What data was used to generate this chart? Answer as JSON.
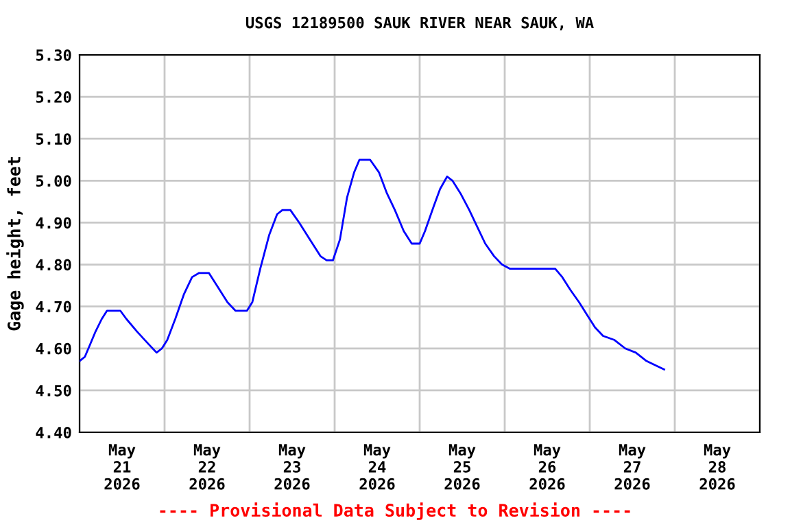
{
  "chart_data": {
    "type": "line",
    "title": "USGS 12189500 SAUK RIVER NEAR SAUK, WA",
    "ylabel": "Gage height, feet",
    "annotations": [
      "---- Provisional Data Subject to Revision ----"
    ],
    "x": [
      "2026-05-21T00:00",
      "2026-05-21T01:30",
      "2026-05-21T03:00",
      "2026-05-21T04:30",
      "2026-05-21T06:15",
      "2026-05-21T07:45",
      "2026-05-21T11:30",
      "2026-05-21T13:15",
      "2026-05-21T16:15",
      "2026-05-21T19:30",
      "2026-05-21T21:45",
      "2026-05-21T23:15",
      "2026-05-22T00:45",
      "2026-05-22T03:00",
      "2026-05-22T05:30",
      "2026-05-22T07:45",
      "2026-05-22T09:45",
      "2026-05-22T12:30",
      "2026-05-22T14:45",
      "2026-05-22T17:45",
      "2026-05-22T20:00",
      "2026-05-22T23:15",
      "2026-05-23T00:45",
      "2026-05-23T03:00",
      "2026-05-23T05:30",
      "2026-05-23T07:45",
      "2026-05-23T09:15",
      "2026-05-23T11:30",
      "2026-05-23T14:00",
      "2026-05-23T17:00",
      "2026-05-23T20:00",
      "2026-05-23T21:45",
      "2026-05-23T23:30",
      "2026-05-24T01:30",
      "2026-05-24T03:30",
      "2026-05-24T05:30",
      "2026-05-24T07:00",
      "2026-05-24T10:00",
      "2026-05-24T12:30",
      "2026-05-24T14:45",
      "2026-05-24T17:00",
      "2026-05-24T19:30",
      "2026-05-24T21:45",
      "2026-05-25T00:00",
      "2026-05-25T01:30",
      "2026-05-25T04:00",
      "2026-05-25T05:45",
      "2026-05-25T07:45",
      "2026-05-25T09:15",
      "2026-05-25T11:30",
      "2026-05-25T14:00",
      "2026-05-25T16:15",
      "2026-05-25T18:30",
      "2026-05-25T21:00",
      "2026-05-25T23:15",
      "2026-05-26T01:30",
      "2026-05-26T14:15",
      "2026-05-26T16:15",
      "2026-05-26T18:30",
      "2026-05-26T21:00",
      "2026-05-26T23:15",
      "2026-05-27T01:30",
      "2026-05-27T03:45",
      "2026-05-27T07:00",
      "2026-05-27T10:00",
      "2026-05-27T13:00",
      "2026-05-27T16:00",
      "2026-05-27T18:30",
      "2026-05-27T21:00"
    ],
    "series": [
      {
        "color": "#0000ff",
        "values": [
          4.57,
          4.58,
          4.61,
          4.64,
          4.67,
          4.69,
          4.69,
          4.67,
          4.64,
          4.61,
          4.59,
          4.6,
          4.62,
          4.67,
          4.73,
          4.77,
          4.78,
          4.78,
          4.75,
          4.71,
          4.69,
          4.69,
          4.71,
          4.79,
          4.87,
          4.92,
          4.93,
          4.93,
          4.9,
          4.86,
          4.82,
          4.81,
          4.81,
          4.86,
          4.96,
          5.02,
          5.05,
          5.05,
          5.02,
          4.97,
          4.93,
          4.88,
          4.85,
          4.85,
          4.88,
          4.94,
          4.98,
          5.01,
          5.0,
          4.97,
          4.93,
          4.89,
          4.85,
          4.82,
          4.8,
          4.79,
          4.79,
          4.77,
          4.74,
          4.71,
          4.68,
          4.65,
          4.63,
          4.62,
          4.6,
          4.59,
          4.57,
          4.56,
          4.55
        ]
      }
    ],
    "xlim": [
      "2026-05-21T00:00",
      "2026-05-29T00:00"
    ],
    "xticks": [
      {
        "value": "2026-05-21T00:00",
        "label": null
      },
      {
        "value": "2026-05-21T12:00",
        "label": "May\n21\n2026"
      },
      {
        "value": "2026-05-22T00:00",
        "label": null
      },
      {
        "value": "2026-05-22T12:00",
        "label": "May\n22\n2026"
      },
      {
        "value": "2026-05-23T00:00",
        "label": null
      },
      {
        "value": "2026-05-23T12:00",
        "label": "May\n23\n2026"
      },
      {
        "value": "2026-05-24T00:00",
        "label": null
      },
      {
        "value": "2026-05-24T12:00",
        "label": "May\n24\n2026"
      },
      {
        "value": "2026-05-25T00:00",
        "label": null
      },
      {
        "value": "2026-05-25T12:00",
        "label": "May\n25\n2026"
      },
      {
        "value": "2026-05-26T00:00",
        "label": null
      },
      {
        "value": "2026-05-26T12:00",
        "label": "May\n26\n2026"
      },
      {
        "value": "2026-05-27T00:00",
        "label": null
      },
      {
        "value": "2026-05-27T12:00",
        "label": "May\n27\n2026"
      },
      {
        "value": "2026-05-28T00:00",
        "label": null
      },
      {
        "value": "2026-05-28T12:00",
        "label": "May\n28\n2026"
      },
      {
        "value": "2026-05-29T00:00",
        "label": null
      }
    ],
    "ylim": [
      4.4,
      5.3
    ],
    "yticks": [
      {
        "value": 4.4,
        "label": "4.40"
      },
      {
        "value": 4.5,
        "label": "4.50"
      },
      {
        "value": 4.6,
        "label": "4.60"
      },
      {
        "value": 4.7,
        "label": "4.70"
      },
      {
        "value": 4.8,
        "label": "4.80"
      },
      {
        "value": 4.9,
        "label": "4.90"
      },
      {
        "value": 5.0,
        "label": "5.00"
      },
      {
        "value": 5.1,
        "label": "5.10"
      },
      {
        "value": 5.2,
        "label": "5.20"
      },
      {
        "value": 5.3,
        "label": "5.30"
      }
    ],
    "grid": true
  }
}
